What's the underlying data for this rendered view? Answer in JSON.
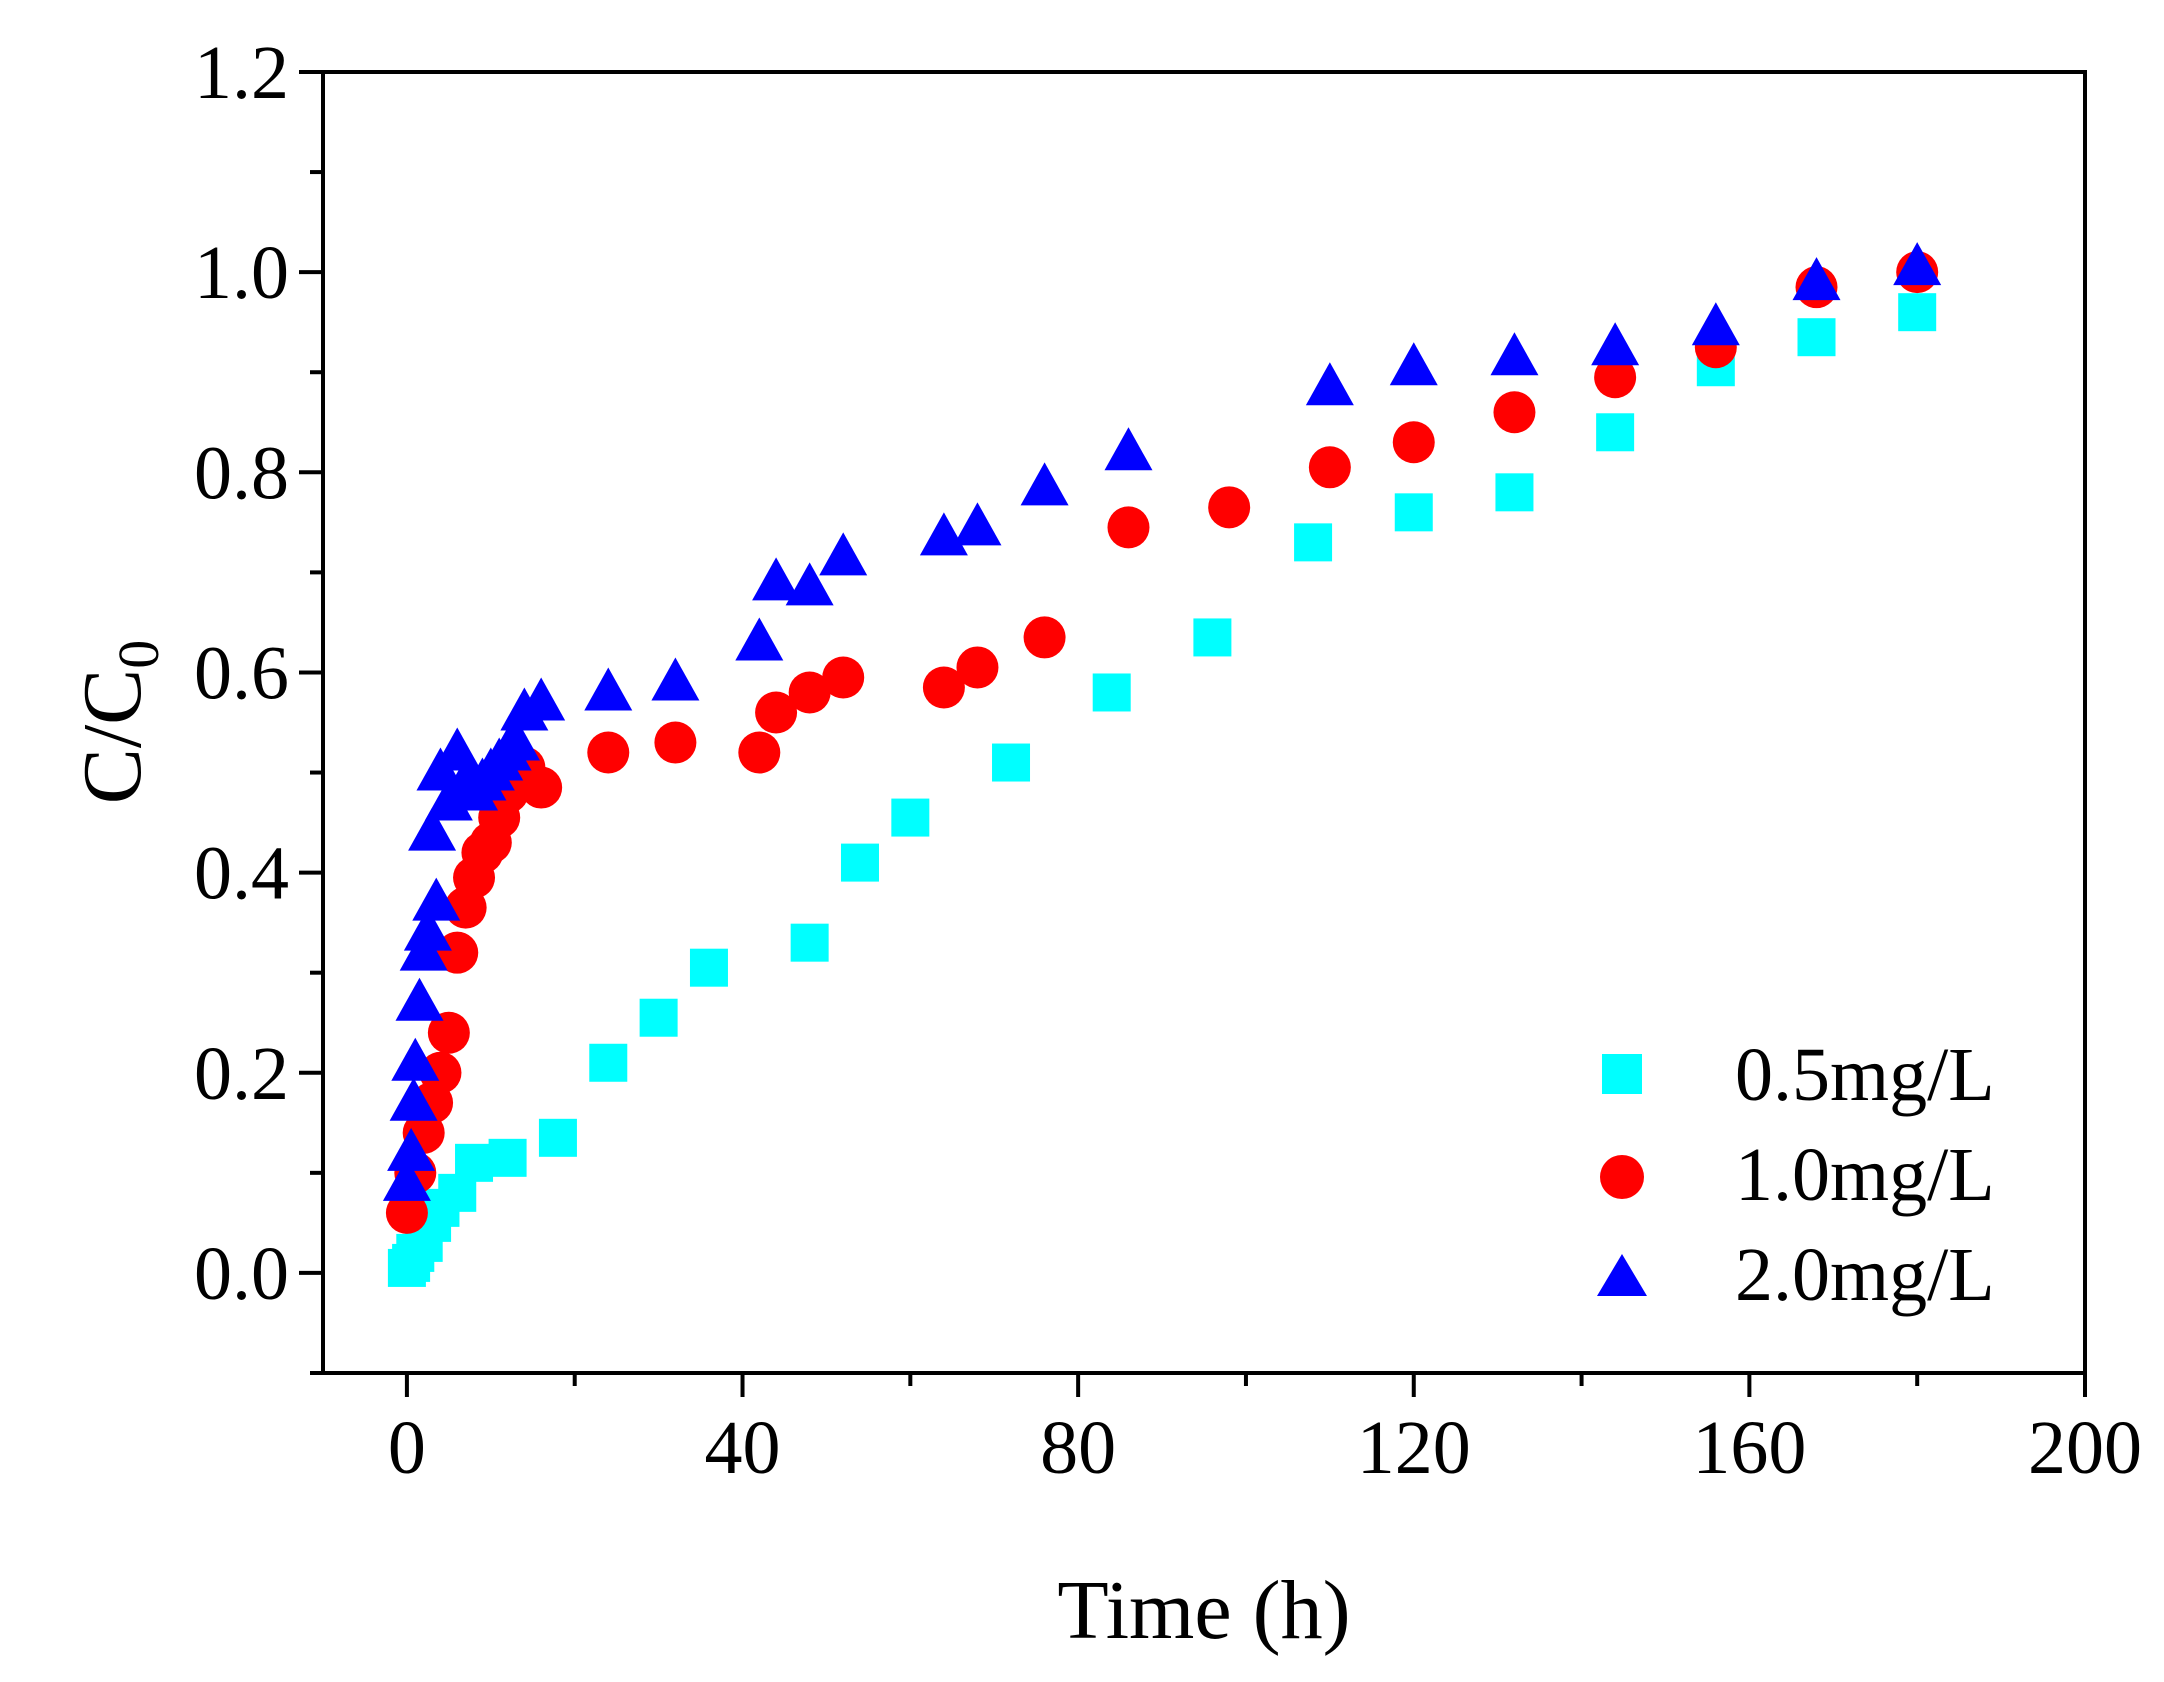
{
  "chart_data": {
    "type": "scatter",
    "title": "",
    "xlabel": "Time (h)",
    "ylabel": "C/C",
    "ylabel_subscript": "0",
    "xlim": [
      -10,
      200
    ],
    "ylim": [
      -0.1,
      1.2
    ],
    "xticks": [
      0,
      40,
      80,
      120,
      160,
      200
    ],
    "xtick_labels": [
      "0",
      "40",
      "80",
      "120",
      "160",
      "200"
    ],
    "yticks": [
      0.0,
      0.2,
      0.4,
      0.6,
      0.8,
      1.0,
      1.2
    ],
    "ytick_labels": [
      "0.0",
      "0.2",
      "0.4",
      "0.6",
      "0.8",
      "1.0",
      "1.2"
    ],
    "legend_position": "bottom-right",
    "grid": false,
    "series": [
      {
        "name": "0.5mg/L",
        "marker": "square",
        "color": "#00FFFF",
        "x": [
          0,
          0.5,
          1,
          2,
          3,
          4,
          6,
          8,
          12,
          18,
          24,
          30,
          36,
          48,
          54,
          60,
          72,
          84,
          96,
          108,
          120,
          132,
          144,
          156,
          168,
          180
        ],
        "y": [
          0.005,
          0.01,
          0.02,
          0.03,
          0.05,
          0.065,
          0.08,
          0.11,
          0.115,
          0.135,
          0.21,
          0.255,
          0.305,
          0.33,
          0.41,
          0.455,
          0.51,
          0.58,
          0.635,
          0.73,
          0.76,
          0.78,
          0.84,
          0.905,
          0.935,
          0.96
        ]
      },
      {
        "name": "1.0mg/L",
        "marker": "circle",
        "color": "#FF0000",
        "x": [
          0,
          1,
          2,
          3,
          4,
          5,
          6,
          7,
          8,
          9,
          10,
          11,
          12,
          14,
          16,
          24,
          32,
          42,
          44,
          48,
          52,
          64,
          68,
          76,
          86,
          98,
          110,
          120,
          132,
          144,
          156,
          168,
          180
        ],
        "y": [
          0.06,
          0.1,
          0.14,
          0.17,
          0.2,
          0.24,
          0.32,
          0.365,
          0.395,
          0.42,
          0.43,
          0.455,
          0.48,
          0.505,
          0.485,
          0.52,
          0.53,
          0.52,
          0.56,
          0.58,
          0.595,
          0.585,
          0.605,
          0.635,
          0.745,
          0.765,
          0.805,
          0.83,
          0.86,
          0.895,
          0.925,
          0.985,
          1.0
        ]
      },
      {
        "name": "2.0mg/L",
        "marker": "triangle",
        "color": "#0000FF",
        "x": [
          0,
          0.5,
          0.8,
          1,
          1.5,
          2,
          2.5,
          3,
          3.5,
          4,
          5,
          6,
          7,
          8,
          9,
          10,
          11,
          12,
          13,
          14,
          16,
          24,
          32,
          42,
          44,
          48,
          52,
          64,
          68,
          76,
          86,
          110,
          120,
          132,
          144,
          156,
          168,
          180
        ],
        "y": [
          0.09,
          0.12,
          0.17,
          0.21,
          0.27,
          0.32,
          0.34,
          0.44,
          0.37,
          0.5,
          0.47,
          0.52,
          0.49,
          0.48,
          0.49,
          0.5,
          0.51,
          0.52,
          0.53,
          0.56,
          0.57,
          0.58,
          0.59,
          0.63,
          0.69,
          0.685,
          0.715,
          0.735,
          0.745,
          0.785,
          0.82,
          0.885,
          0.905,
          0.915,
          0.925,
          0.945,
          0.99,
          1.005
        ]
      }
    ]
  }
}
